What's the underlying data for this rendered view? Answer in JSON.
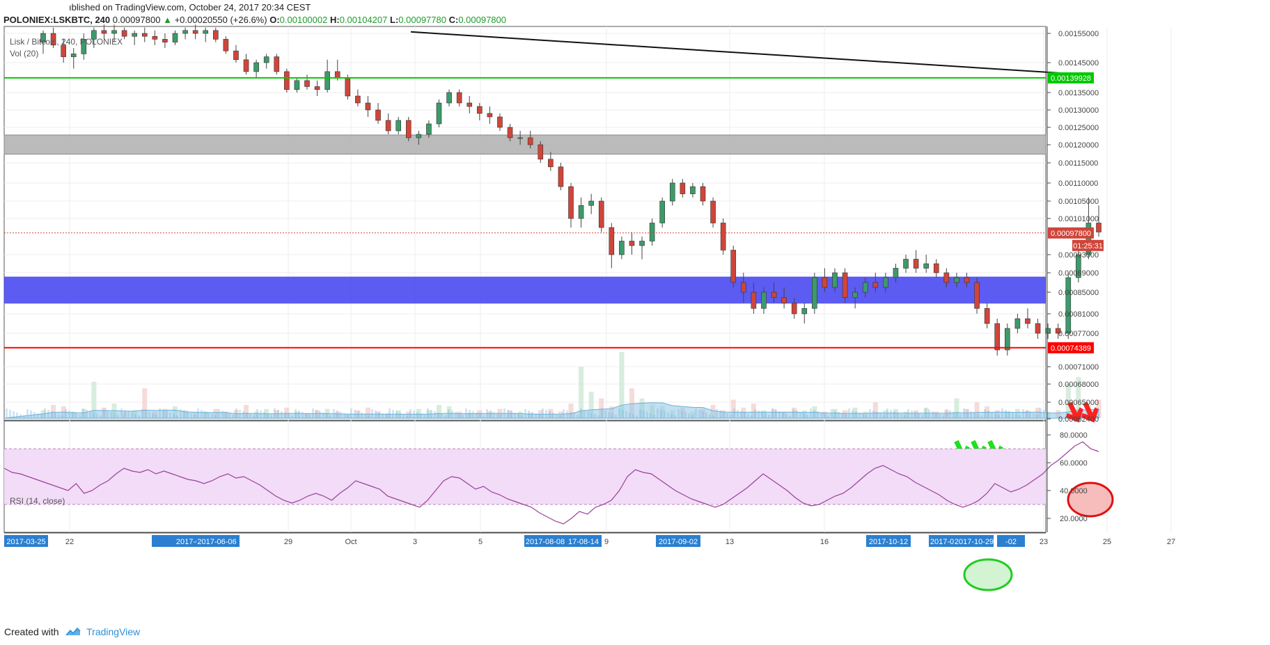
{
  "header": {
    "published": "ıblished on TradingView.com, October 24, 2017 20:34 CEST",
    "symbol": "POLONIEX:LSKBTC, 240",
    "last": "0.00097800",
    "change": "+0.00020550 (+26.6%)",
    "o_label": "O:",
    "o": "0.00100002",
    "h_label": "H:",
    "h": "0.00104207",
    "l_label": "L:",
    "l": "0.00097780",
    "c_label": "C:",
    "c": "0.00097800"
  },
  "legend": {
    "title": "Lisk / Bitcoin, 240, POLONIEX",
    "volume": "Vol (20)",
    "rsi": "RSI (14, close)"
  },
  "colors": {
    "up": "#3d9a6a",
    "down": "#d0453a",
    "green_line": "#00c800",
    "red_line": "#ff0000",
    "grey_zone": "#b4b4b4",
    "blue_zone": "#4040f0",
    "rsi_line": "#9c3f9c",
    "rsi_band": "#f2dcf7",
    "axis_highlight": "#2a7fd0"
  },
  "footer": {
    "created": "Created with",
    "brand": "TradingView"
  },
  "chart_data": [
    {
      "type": "candlestick",
      "title": "Lisk / Bitcoin, 240, POLONIEX",
      "price_axis_ticks": [
        "0.00155000",
        "0.00145000",
        "0.00135000",
        "0.00130000",
        "0.00125000",
        "0.00120000",
        "0.00115000",
        "0.00110000",
        "0.00105000",
        "0.00101000",
        "0.00093000",
        "0.00089000",
        "0.00085000",
        "0.00081000",
        "0.00077000",
        "0.00071000",
        "0.00068000",
        "0.00065000",
        "0.00062400"
      ],
      "time_axis_ticks": [
        "22",
        "29",
        "Oct",
        "3",
        "5",
        "9",
        "13",
        "16",
        "23",
        "25",
        "27"
      ],
      "time_axis_highlights": [
        "2017-03-25",
        "2017-05-29",
        "2017-06-06",
        "2017-08-08",
        "17-08-14",
        "2017-09-02",
        "2017-10-12",
        "2017-0",
        "2017-10-29",
        "-02"
      ],
      "price_labels": [
        {
          "text": "0.00139928",
          "color": "#00c800"
        },
        {
          "text": "0.00097800",
          "color": "#d0453a"
        },
        {
          "text": "01:25:31",
          "color": "#d0453a"
        },
        {
          "text": "0.00074389",
          "color": "#ff0000"
        }
      ],
      "horizontal_levels": [
        {
          "price": 0.001399,
          "color": "#00c800"
        },
        {
          "price": 0.000744,
          "color": "#ff0000"
        },
        {
          "price": 0.000978,
          "color": "#d0453a",
          "style": "dotted"
        }
      ],
      "zones": [
        {
          "from": 0.001174,
          "to": 0.001228,
          "color": "#b4b4b4"
        },
        {
          "from": 0.000829,
          "to": 0.000882,
          "color": "#4040f0"
        }
      ],
      "trendline": {
        "from": [
          0.2,
          0.00156
        ],
        "to": [
          0.885,
          0.00144
        ]
      },
      "arrows": [
        {
          "color": "green",
          "x": [
            0.79,
            0.805,
            0.82
          ]
        },
        {
          "color": "red",
          "x": [
            0.883,
            0.898
          ]
        }
      ],
      "series": [
        {
          "name": "Lisk / Bitcoin",
          "ohlc": [
            [
              0.00152,
              0.00156,
              0.00148,
              0.00155
            ],
            [
              0.00155,
              0.00157,
              0.0015,
              0.00151
            ],
            [
              0.00151,
              0.00153,
              0.00145,
              0.00147
            ],
            [
              0.00147,
              0.0015,
              0.00143,
              0.00148
            ],
            [
              0.00148,
              0.00155,
              0.00146,
              0.00153
            ],
            [
              0.00153,
              0.00157,
              0.0015,
              0.00156
            ],
            [
              0.00156,
              0.00158,
              0.00153,
              0.00155
            ],
            [
              0.00155,
              0.00158,
              0.00152,
              0.00156
            ],
            [
              0.00156,
              0.00157,
              0.00153,
              0.00154
            ],
            [
              0.00154,
              0.00156,
              0.00151,
              0.00155
            ],
            [
              0.00155,
              0.00157,
              0.00152,
              0.00154
            ],
            [
              0.00154,
              0.00156,
              0.00151,
              0.00153
            ],
            [
              0.00153,
              0.00155,
              0.0015,
              0.00152
            ],
            [
              0.00152,
              0.00156,
              0.00151,
              0.00155
            ],
            [
              0.00155,
              0.00157,
              0.00153,
              0.00156
            ],
            [
              0.00156,
              0.00158,
              0.00153,
              0.00155
            ],
            [
              0.00155,
              0.00157,
              0.00152,
              0.00156
            ],
            [
              0.00156,
              0.00157,
              0.00152,
              0.00153
            ],
            [
              0.00153,
              0.00154,
              0.00148,
              0.00149
            ],
            [
              0.00149,
              0.00151,
              0.00145,
              0.00146
            ],
            [
              0.00146,
              0.00148,
              0.00141,
              0.00142
            ],
            [
              0.00142,
              0.00146,
              0.0014,
              0.00145
            ],
            [
              0.00145,
              0.00148,
              0.00143,
              0.00147
            ],
            [
              0.00147,
              0.00148,
              0.00141,
              0.00142
            ],
            [
              0.00142,
              0.00143,
              0.00135,
              0.00136
            ],
            [
              0.00136,
              0.0014,
              0.00135,
              0.00139
            ],
            [
              0.00139,
              0.00141,
              0.00136,
              0.00137
            ],
            [
              0.00137,
              0.00139,
              0.00134,
              0.00136
            ],
            [
              0.00136,
              0.00146,
              0.00135,
              0.00142
            ],
            [
              0.00142,
              0.00146,
              0.00139,
              0.0014
            ],
            [
              0.0014,
              0.00141,
              0.00133,
              0.00134
            ],
            [
              0.00134,
              0.00136,
              0.00131,
              0.00132
            ],
            [
              0.00132,
              0.00134,
              0.00128,
              0.0013
            ],
            [
              0.0013,
              0.00132,
              0.00126,
              0.00127
            ],
            [
              0.00127,
              0.00129,
              0.00123,
              0.00124
            ],
            [
              0.00124,
              0.00128,
              0.00123,
              0.00127
            ],
            [
              0.00127,
              0.00128,
              0.00121,
              0.00122
            ],
            [
              0.00122,
              0.00124,
              0.0012,
              0.00123
            ],
            [
              0.00123,
              0.00127,
              0.00122,
              0.00126
            ],
            [
              0.00126,
              0.00133,
              0.00125,
              0.00132
            ],
            [
              0.00132,
              0.00136,
              0.00131,
              0.00135
            ],
            [
              0.00135,
              0.00136,
              0.00131,
              0.00132
            ],
            [
              0.00132,
              0.00134,
              0.00129,
              0.00131
            ],
            [
              0.00131,
              0.00132,
              0.00127,
              0.00129
            ],
            [
              0.00129,
              0.00131,
              0.00126,
              0.00128
            ],
            [
              0.00128,
              0.00129,
              0.00124,
              0.00125
            ],
            [
              0.00125,
              0.00126,
              0.00121,
              0.00122
            ],
            [
              0.00122,
              0.00124,
              0.0012,
              0.00122
            ],
            [
              0.00122,
              0.00124,
              0.00119,
              0.0012
            ],
            [
              0.0012,
              0.00121,
              0.00115,
              0.00116
            ],
            [
              0.00116,
              0.00118,
              0.00113,
              0.00114
            ],
            [
              0.00114,
              0.00115,
              0.00108,
              0.00109
            ],
            [
              0.00109,
              0.0011,
              0.00099,
              0.00101
            ],
            [
              0.00101,
              0.00106,
              0.00099,
              0.00104
            ],
            [
              0.00104,
              0.00107,
              0.00102,
              0.00105
            ],
            [
              0.00105,
              0.00106,
              0.00098,
              0.00099
            ],
            [
              0.00099,
              0.001,
              0.0009,
              0.00093
            ],
            [
              0.00093,
              0.00097,
              0.00092,
              0.00096
            ],
            [
              0.00096,
              0.00098,
              0.00093,
              0.00095
            ],
            [
              0.00095,
              0.00097,
              0.00092,
              0.00096
            ],
            [
              0.00096,
              0.00101,
              0.00095,
              0.001
            ],
            [
              0.001,
              0.00106,
              0.00099,
              0.00105
            ],
            [
              0.00105,
              0.00111,
              0.00104,
              0.0011
            ],
            [
              0.0011,
              0.00111,
              0.00106,
              0.00107
            ],
            [
              0.00107,
              0.0011,
              0.00106,
              0.00109
            ],
            [
              0.00109,
              0.0011,
              0.00104,
              0.00105
            ],
            [
              0.00105,
              0.00106,
              0.00099,
              0.001
            ],
            [
              0.001,
              0.00101,
              0.00093,
              0.00094
            ],
            [
              0.00094,
              0.00095,
              0.00086,
              0.00087
            ],
            [
              0.00087,
              0.00089,
              0.00083,
              0.00085
            ],
            [
              0.00085,
              0.00087,
              0.00081,
              0.00082
            ],
            [
              0.00082,
              0.00086,
              0.00081,
              0.00085
            ],
            [
              0.00085,
              0.00087,
              0.00083,
              0.00084
            ],
            [
              0.00084,
              0.00086,
              0.00082,
              0.00083
            ],
            [
              0.00083,
              0.00084,
              0.0008,
              0.00081
            ],
            [
              0.00081,
              0.00083,
              0.00079,
              0.00082
            ],
            [
              0.00082,
              0.00089,
              0.00081,
              0.00088
            ],
            [
              0.00088,
              0.0009,
              0.00085,
              0.00086
            ],
            [
              0.00086,
              0.0009,
              0.00085,
              0.00089
            ],
            [
              0.00089,
              0.0009,
              0.00083,
              0.00084
            ],
            [
              0.00084,
              0.00086,
              0.00082,
              0.00085
            ],
            [
              0.00085,
              0.00088,
              0.00084,
              0.00087
            ],
            [
              0.00087,
              0.00089,
              0.00085,
              0.00086
            ],
            [
              0.00086,
              0.00089,
              0.00085,
              0.00088
            ],
            [
              0.00088,
              0.00091,
              0.00087,
              0.0009
            ],
            [
              0.0009,
              0.00093,
              0.00089,
              0.00092
            ],
            [
              0.00092,
              0.00094,
              0.00089,
              0.0009
            ],
            [
              0.0009,
              0.00093,
              0.00089,
              0.00091
            ],
            [
              0.00091,
              0.00092,
              0.00088,
              0.00089
            ],
            [
              0.00089,
              0.0009,
              0.00086,
              0.00087
            ],
            [
              0.00087,
              0.00089,
              0.00086,
              0.00088
            ],
            [
              0.00088,
              0.00089,
              0.00086,
              0.00087
            ],
            [
              0.00087,
              0.00088,
              0.00081,
              0.00082
            ],
            [
              0.00082,
              0.00083,
              0.00078,
              0.00079
            ],
            [
              0.00079,
              0.0008,
              0.00073,
              0.00074
            ],
            [
              0.00074,
              0.00079,
              0.00073,
              0.00078
            ],
            [
              0.00078,
              0.00081,
              0.00077,
              0.0008
            ],
            [
              0.0008,
              0.00082,
              0.00078,
              0.00079
            ],
            [
              0.00079,
              0.0008,
              0.00076,
              0.00077
            ],
            [
              0.00077,
              0.00079,
              0.00076,
              0.00078
            ],
            [
              0.00078,
              0.00079,
              0.00076,
              0.00077
            ],
            [
              0.00077,
              0.00089,
              0.00076,
              0.00088
            ],
            [
              0.00088,
              0.00094,
              0.00087,
              0.00093
            ],
            [
              0.00093,
              0.00106,
              0.00092,
              0.001
            ],
            [
              0.001,
              0.00104,
              0.00097,
              0.00098
            ]
          ]
        }
      ]
    },
    {
      "type": "bar",
      "title": "Vol (20)",
      "volume_scale": [
        0.12,
        0.2,
        0.18,
        0.1,
        0.14,
        0.55,
        0.16,
        0.22,
        0.08,
        0.12,
        0.45,
        0.1,
        0.14,
        0.18,
        0.12,
        0.08,
        0.1,
        0.14,
        0.1,
        0.12,
        0.2,
        0.1,
        0.14,
        0.12,
        0.16,
        0.1,
        0.08,
        0.12,
        0.14,
        0.1,
        0.06,
        0.12,
        0.16,
        0.1,
        0.08,
        0.12,
        0.1,
        0.14,
        0.12,
        0.2,
        0.18,
        0.1,
        0.08,
        0.12,
        0.1,
        0.14,
        0.12,
        0.1,
        0.08,
        0.12,
        0.14,
        0.1,
        0.22,
        0.78,
        0.4,
        0.3,
        0.18,
        1.0,
        0.45,
        0.3,
        0.2,
        0.18,
        0.12,
        0.16,
        0.1,
        0.14,
        0.2,
        0.12,
        0.28,
        0.16,
        0.22,
        0.12,
        0.14,
        0.1,
        0.16,
        0.12,
        0.18,
        0.1,
        0.14,
        0.12,
        0.16,
        0.1,
        0.24,
        0.12,
        0.14,
        0.1,
        0.12,
        0.16,
        0.1,
        0.12,
        0.3,
        0.14,
        0.24,
        0.18,
        0.12,
        0.1,
        0.14,
        0.12,
        0.16,
        0.1,
        0.12,
        0.52,
        0.62,
        0.2,
        0.28
      ]
    },
    {
      "type": "line",
      "title": "RSI (14, close)",
      "ylim": [
        10,
        90
      ],
      "y_ticks": [
        "80.0000",
        "60.0000",
        "40.0000",
        "20.0000"
      ],
      "band": [
        30,
        70
      ],
      "series": [
        {
          "name": "RSI",
          "values": [
            56,
            53,
            52,
            50,
            48,
            46,
            44,
            42,
            40,
            45,
            38,
            40,
            44,
            47,
            52,
            56,
            54,
            53,
            55,
            52,
            54,
            52,
            50,
            48,
            47,
            45,
            47,
            50,
            52,
            49,
            50,
            47,
            44,
            40,
            36,
            33,
            31,
            33,
            36,
            38,
            36,
            33,
            38,
            42,
            47,
            45,
            43,
            41,
            36,
            34,
            32,
            30,
            28,
            33,
            40,
            47,
            50,
            49,
            45,
            41,
            43,
            39,
            37,
            34,
            32,
            30,
            28,
            24,
            21,
            18,
            16,
            20,
            25,
            23,
            28,
            30,
            33,
            40,
            50,
            55,
            53,
            52,
            48,
            44,
            40,
            37,
            34,
            32,
            30,
            28,
            30,
            34,
            38,
            42,
            47,
            52,
            48,
            44,
            40,
            35,
            31,
            29,
            30,
            33,
            36,
            38,
            42,
            47,
            52,
            56,
            58,
            55,
            52,
            50,
            46,
            43,
            40,
            37,
            33,
            30,
            28,
            30,
            33,
            38,
            45,
            42,
            39,
            41,
            44,
            48,
            52,
            58,
            62,
            67,
            72,
            75,
            70,
            68
          ]
        }
      ]
    }
  ]
}
